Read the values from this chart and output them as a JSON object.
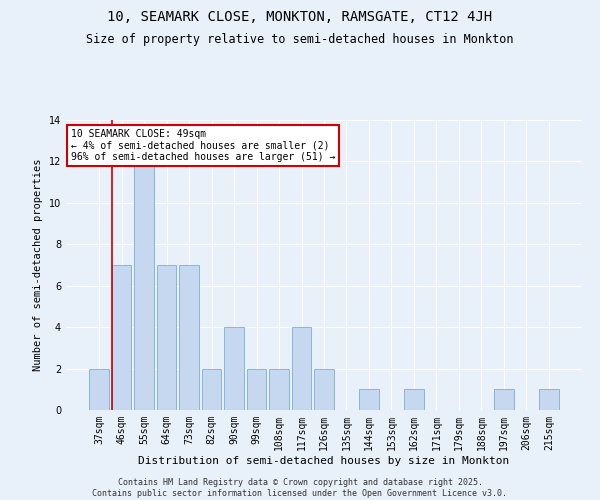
{
  "title": "10, SEAMARK CLOSE, MONKTON, RAMSGATE, CT12 4JH",
  "subtitle": "Size of property relative to semi-detached houses in Monkton",
  "xlabel": "Distribution of semi-detached houses by size in Monkton",
  "ylabel": "Number of semi-detached properties",
  "categories": [
    "37sqm",
    "46sqm",
    "55sqm",
    "64sqm",
    "73sqm",
    "82sqm",
    "90sqm",
    "99sqm",
    "108sqm",
    "117sqm",
    "126sqm",
    "135sqm",
    "144sqm",
    "153sqm",
    "162sqm",
    "171sqm",
    "179sqm",
    "188sqm",
    "197sqm",
    "206sqm",
    "215sqm"
  ],
  "values": [
    2,
    7,
    12,
    7,
    7,
    2,
    4,
    2,
    2,
    4,
    2,
    0,
    1,
    0,
    1,
    0,
    0,
    0,
    1,
    0,
    1
  ],
  "bar_color": "#c5d8f0",
  "bar_edge_color": "#7bafd4",
  "red_line_index": 1,
  "annotation_text": "10 SEAMARK CLOSE: 49sqm\n← 4% of semi-detached houses are smaller (2)\n96% of semi-detached houses are larger (51) →",
  "annotation_box_color": "#ffffff",
  "annotation_box_edge": "#cc0000",
  "ylim": [
    0,
    14
  ],
  "yticks": [
    0,
    2,
    4,
    6,
    8,
    10,
    12,
    14
  ],
  "background_color": "#e8f0fa",
  "grid_color": "#ffffff",
  "footer": "Contains HM Land Registry data © Crown copyright and database right 2025.\nContains public sector information licensed under the Open Government Licence v3.0.",
  "title_fontsize": 10,
  "subtitle_fontsize": 8.5,
  "xlabel_fontsize": 8,
  "ylabel_fontsize": 7.5,
  "tick_fontsize": 7,
  "footer_fontsize": 6,
  "annot_fontsize": 7
}
